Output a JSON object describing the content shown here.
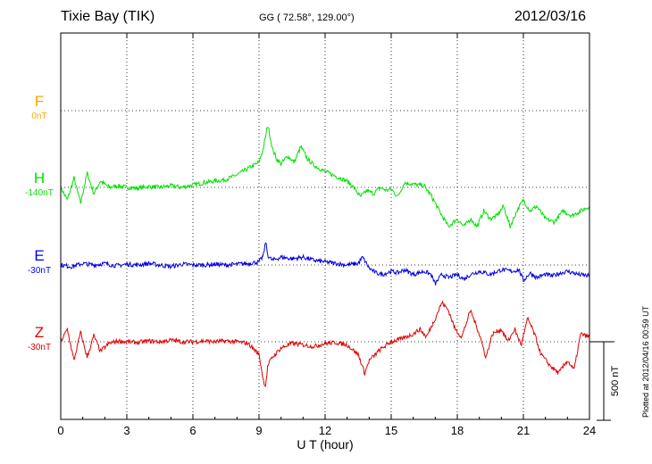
{
  "header": {
    "station": "Tixie Bay (TIK)",
    "coords": "GG ( 72.58°, 129.00°)",
    "date": "2012/03/16"
  },
  "side_note": "Plotted at 2012/04/16 00:59 UT",
  "colors": {
    "F": "#ffa500",
    "H": "#00e000",
    "E": "#0000e0",
    "Z": "#e00000"
  },
  "chart_data": {
    "type": "line",
    "xlabel": "U T (hour)",
    "xlim": [
      0,
      24
    ],
    "xticks": [
      "0",
      "3",
      "6",
      "9",
      "12",
      "15",
      "18",
      "21",
      "24"
    ],
    "scale_bar": {
      "label": "500 nT",
      "value_nT": 500
    },
    "series": [
      {
        "name": "F",
        "offset_label": "0nT",
        "points": []
      },
      {
        "name": "H",
        "offset_label": "-140nT",
        "points": [
          [
            0,
            0
          ],
          [
            0.3,
            -80
          ],
          [
            0.6,
            60
          ],
          [
            0.9,
            -100
          ],
          [
            1.2,
            90
          ],
          [
            1.5,
            -40
          ],
          [
            1.8,
            40
          ],
          [
            2.2,
            0
          ],
          [
            2.6,
            10
          ],
          [
            3,
            0
          ],
          [
            3.5,
            -5
          ],
          [
            4,
            5
          ],
          [
            4.5,
            0
          ],
          [
            5,
            10
          ],
          [
            5.5,
            0
          ],
          [
            6,
            15
          ],
          [
            6.5,
            30
          ],
          [
            7,
            40
          ],
          [
            7.5,
            50
          ],
          [
            8,
            80
          ],
          [
            8.5,
            120
          ],
          [
            9,
            160
          ],
          [
            9.2,
            250
          ],
          [
            9.4,
            400
          ],
          [
            9.6,
            250
          ],
          [
            9.8,
            180
          ],
          [
            10,
            150
          ],
          [
            10.3,
            200
          ],
          [
            10.6,
            160
          ],
          [
            10.9,
            260
          ],
          [
            11.2,
            180
          ],
          [
            11.5,
            140
          ],
          [
            12,
            100
          ],
          [
            12.5,
            70
          ],
          [
            13,
            40
          ],
          [
            13.3,
            0
          ],
          [
            13.6,
            -60
          ],
          [
            13.9,
            -20
          ],
          [
            14.2,
            -40
          ],
          [
            14.5,
            0
          ],
          [
            14.8,
            -20
          ],
          [
            15,
            -10
          ],
          [
            15.3,
            -60
          ],
          [
            15.6,
            30
          ],
          [
            16,
            20
          ],
          [
            16.5,
            10
          ],
          [
            16.8,
            -50
          ],
          [
            17,
            -100
          ],
          [
            17.3,
            -180
          ],
          [
            17.6,
            -250
          ],
          [
            18,
            -200
          ],
          [
            18.3,
            -250
          ],
          [
            18.6,
            -200
          ],
          [
            18.9,
            -250
          ],
          [
            19.2,
            -150
          ],
          [
            19.5,
            -200
          ],
          [
            19.8,
            -180
          ],
          [
            20.1,
            -120
          ],
          [
            20.4,
            -250
          ],
          [
            20.7,
            -150
          ],
          [
            21,
            -80
          ],
          [
            21.3,
            -150
          ],
          [
            21.6,
            -120
          ],
          [
            22,
            -200
          ],
          [
            22.4,
            -220
          ],
          [
            22.8,
            -150
          ],
          [
            23.2,
            -180
          ],
          [
            23.6,
            -150
          ],
          [
            24,
            -120
          ]
        ]
      },
      {
        "name": "E",
        "offset_label": "-30nT",
        "points": [
          [
            0,
            0
          ],
          [
            0.5,
            -10
          ],
          [
            1,
            10
          ],
          [
            1.5,
            0
          ],
          [
            2,
            10
          ],
          [
            2.5,
            -5
          ],
          [
            3,
            5
          ],
          [
            3.5,
            0
          ],
          [
            4,
            10
          ],
          [
            4.5,
            0
          ],
          [
            5,
            -10
          ],
          [
            5.5,
            5
          ],
          [
            6,
            0
          ],
          [
            6.5,
            0
          ],
          [
            7,
            5
          ],
          [
            7.5,
            0
          ],
          [
            8,
            5
          ],
          [
            8.5,
            10
          ],
          [
            9,
            20
          ],
          [
            9.2,
            60
          ],
          [
            9.3,
            150
          ],
          [
            9.4,
            60
          ],
          [
            9.6,
            30
          ],
          [
            10,
            50
          ],
          [
            10.5,
            40
          ],
          [
            11,
            50
          ],
          [
            11.5,
            30
          ],
          [
            12,
            20
          ],
          [
            12.5,
            10
          ],
          [
            13,
            0
          ],
          [
            13.5,
            10
          ],
          [
            13.7,
            50
          ],
          [
            14,
            -20
          ],
          [
            14.3,
            -50
          ],
          [
            14.6,
            -60
          ],
          [
            15,
            -40
          ],
          [
            15.3,
            -50
          ],
          [
            15.6,
            -30
          ],
          [
            16,
            -60
          ],
          [
            16.5,
            -40
          ],
          [
            16.8,
            -60
          ],
          [
            17,
            -120
          ],
          [
            17.3,
            -60
          ],
          [
            17.6,
            -80
          ],
          [
            18,
            -60
          ],
          [
            18.3,
            -90
          ],
          [
            18.6,
            -60
          ],
          [
            19,
            -40
          ],
          [
            19.5,
            -60
          ],
          [
            20,
            -30
          ],
          [
            20.5,
            -40
          ],
          [
            20.8,
            -30
          ],
          [
            21,
            -100
          ],
          [
            21.3,
            -50
          ],
          [
            21.6,
            -80
          ],
          [
            22,
            -60
          ],
          [
            22.3,
            -70
          ],
          [
            22.7,
            -50
          ],
          [
            23,
            -40
          ],
          [
            23.5,
            -60
          ],
          [
            24,
            -70
          ]
        ]
      },
      {
        "name": "Z",
        "offset_label": "-30nT",
        "points": [
          [
            0,
            0
          ],
          [
            0.3,
            80
          ],
          [
            0.6,
            -120
          ],
          [
            0.9,
            60
          ],
          [
            1.2,
            -100
          ],
          [
            1.5,
            40
          ],
          [
            1.8,
            -60
          ],
          [
            2.2,
            -10
          ],
          [
            2.6,
            5
          ],
          [
            3,
            0
          ],
          [
            3.5,
            -5
          ],
          [
            4,
            5
          ],
          [
            4.5,
            0
          ],
          [
            5,
            10
          ],
          [
            5.5,
            0
          ],
          [
            6,
            0
          ],
          [
            6.5,
            5
          ],
          [
            7,
            0
          ],
          [
            7.5,
            5
          ],
          [
            8,
            0
          ],
          [
            8.5,
            -10
          ],
          [
            9,
            -80
          ],
          [
            9.2,
            -250
          ],
          [
            9.3,
            -280
          ],
          [
            9.4,
            -150
          ],
          [
            9.6,
            -100
          ],
          [
            10,
            -40
          ],
          [
            10.5,
            -10
          ],
          [
            11,
            -20
          ],
          [
            11.5,
            -30
          ],
          [
            12,
            -10
          ],
          [
            12.5,
            -5
          ],
          [
            13,
            -20
          ],
          [
            13.5,
            -80
          ],
          [
            13.8,
            -200
          ],
          [
            14,
            -120
          ],
          [
            14.5,
            -50
          ],
          [
            15,
            0
          ],
          [
            15.5,
            20
          ],
          [
            16,
            50
          ],
          [
            16.3,
            80
          ],
          [
            16.6,
            30
          ],
          [
            17,
            150
          ],
          [
            17.3,
            250
          ],
          [
            17.6,
            200
          ],
          [
            17.9,
            80
          ],
          [
            18.2,
            30
          ],
          [
            18.6,
            200
          ],
          [
            19,
            50
          ],
          [
            19.3,
            -100
          ],
          [
            19.6,
            50
          ],
          [
            20,
            80
          ],
          [
            20.3,
            0
          ],
          [
            20.6,
            80
          ],
          [
            20.9,
            -20
          ],
          [
            21.2,
            150
          ],
          [
            21.5,
            50
          ],
          [
            21.8,
            -80
          ],
          [
            22.2,
            -150
          ],
          [
            22.6,
            -200
          ],
          [
            23,
            -120
          ],
          [
            23.3,
            -180
          ],
          [
            23.6,
            50
          ],
          [
            24,
            30
          ]
        ]
      }
    ]
  }
}
